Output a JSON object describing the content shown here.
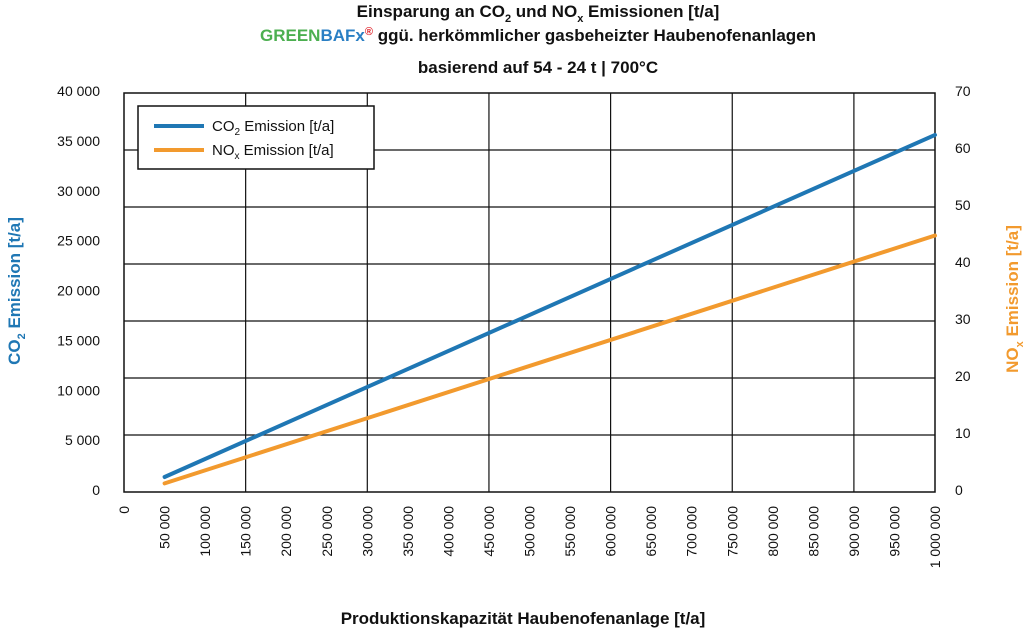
{
  "chart_data": {
    "type": "line",
    "title": {
      "line1_pre": "Einsparung an CO",
      "line1_sub1": "2",
      "line1_mid": " und NO",
      "line1_sub2": "x",
      "line1_post": " Emissionen [t/a]",
      "brand_green": "GREEN",
      "brand_bafx": "BAFx",
      "brand_reg": "®",
      "line2_post": " ggü. herkömmlicher gasbeheizter Haubenofenanlagen",
      "subtitle": "basierend auf 54 - 24 t | 700°C"
    },
    "xlabel": "Produktionskapazität Haubenofenanlage [t/a]",
    "ylabel_left": {
      "pre": "CO",
      "sub": "2",
      "post": " Emission [t/a]"
    },
    "ylabel_right": {
      "pre": "NO",
      "sub": "x",
      "post": " Emission [t/a]"
    },
    "x_ticks": [
      "0",
      "50 000",
      "100 000",
      "150 000",
      "200 000",
      "250 000",
      "300 000",
      "350 000",
      "400 000",
      "450 000",
      "500 000",
      "550 000",
      "600 000",
      "650 000",
      "700 000",
      "750 000",
      "800 000",
      "850 000",
      "900 000",
      "950 000",
      "1 000 000"
    ],
    "y_left_ticks": [
      "0",
      "5 000",
      "10 000",
      "15 000",
      "20 000",
      "25 000",
      "30 000",
      "35 000",
      "40 000"
    ],
    "y_right_ticks": [
      "0",
      "10",
      "20",
      "30",
      "40",
      "50",
      "60",
      "70"
    ],
    "xlim": [
      0,
      1000000
    ],
    "ylim_left": [
      0,
      40000
    ],
    "ylim_right": [
      0,
      70
    ],
    "grid": true,
    "legend_position": "top-left",
    "series": [
      {
        "name_pre": "CO",
        "name_sub": "2",
        "name_post": " Emission [t/a]",
        "axis": "left",
        "color": "#1f77b4",
        "x": [
          50000,
          1000000
        ],
        "y": [
          1500,
          35800
        ]
      },
      {
        "name_pre": "NO",
        "name_sub": "x",
        "name_post": " Emission [t/a]",
        "axis": "right",
        "color": "#f29a2e",
        "x": [
          50000,
          1000000
        ],
        "y": [
          1.5,
          45
        ]
      }
    ],
    "colors": {
      "left_axis": "#1f77b4",
      "right_axis": "#f29a2e",
      "brand_green": "#4caf50",
      "brand_blue": "#2a7fc4",
      "brand_reg": "#e0222a"
    }
  }
}
